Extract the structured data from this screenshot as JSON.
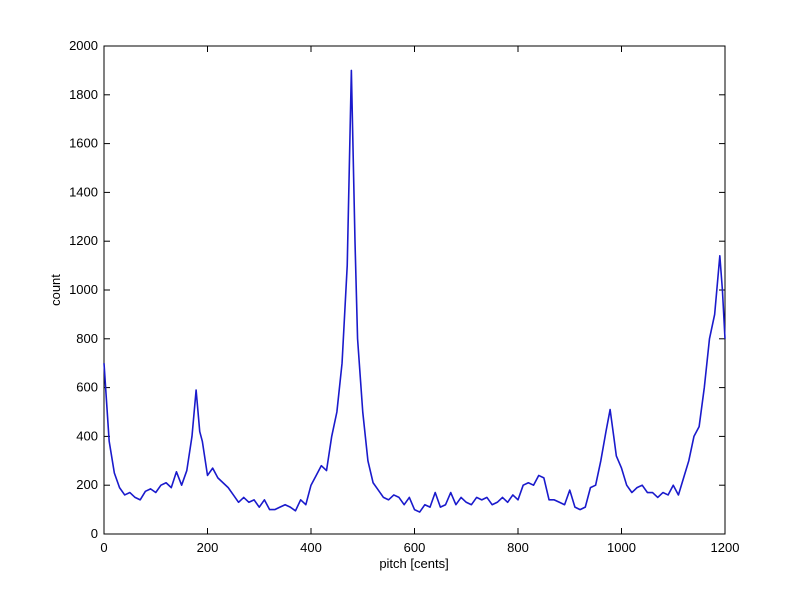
{
  "chart_data": {
    "type": "line",
    "xlabel": "pitch [cents]",
    "ylabel": "count",
    "xlim": [
      0,
      1200
    ],
    "ylim": [
      0,
      2000
    ],
    "xticks": [
      0,
      200,
      400,
      600,
      800,
      1000,
      1200
    ],
    "yticks": [
      0,
      200,
      400,
      600,
      800,
      1000,
      1200,
      1400,
      1600,
      1800,
      2000
    ],
    "grid": false,
    "x": [
      0,
      10,
      20,
      30,
      40,
      50,
      60,
      70,
      80,
      90,
      100,
      110,
      120,
      130,
      140,
      150,
      160,
      170,
      178,
      185,
      190,
      200,
      210,
      220,
      230,
      240,
      250,
      260,
      270,
      280,
      290,
      300,
      310,
      320,
      330,
      340,
      350,
      360,
      370,
      380,
      390,
      400,
      410,
      420,
      430,
      440,
      450,
      460,
      470,
      478,
      485,
      490,
      500,
      510,
      520,
      530,
      540,
      550,
      560,
      570,
      580,
      590,
      600,
      610,
      620,
      630,
      640,
      650,
      660,
      670,
      680,
      690,
      700,
      710,
      720,
      730,
      740,
      750,
      760,
      770,
      780,
      790,
      800,
      810,
      820,
      830,
      840,
      850,
      860,
      870,
      880,
      890,
      900,
      910,
      920,
      930,
      940,
      950,
      960,
      970,
      978,
      985,
      990,
      1000,
      1010,
      1020,
      1030,
      1040,
      1050,
      1060,
      1070,
      1080,
      1090,
      1100,
      1110,
      1120,
      1130,
      1140,
      1150,
      1160,
      1170,
      1180,
      1190,
      1195,
      1200
    ],
    "series": [
      {
        "name": "count",
        "color": "#1a1acc",
        "values": [
          700,
          380,
          250,
          190,
          160,
          170,
          150,
          140,
          175,
          185,
          170,
          200,
          210,
          190,
          255,
          200,
          260,
          400,
          590,
          420,
          380,
          240,
          270,
          230,
          210,
          190,
          160,
          130,
          150,
          130,
          140,
          110,
          140,
          100,
          100,
          110,
          120,
          110,
          95,
          140,
          120,
          200,
          240,
          280,
          260,
          400,
          500,
          700,
          1100,
          1900,
          1200,
          800,
          500,
          300,
          210,
          180,
          150,
          140,
          160,
          150,
          120,
          150,
          100,
          90,
          120,
          110,
          170,
          110,
          120,
          170,
          120,
          150,
          130,
          120,
          150,
          140,
          150,
          120,
          130,
          150,
          130,
          160,
          140,
          200,
          210,
          200,
          240,
          230,
          140,
          140,
          130,
          120,
          180,
          110,
          100,
          110,
          190,
          200,
          300,
          420,
          510,
          400,
          320,
          270,
          200,
          170,
          190,
          200,
          170,
          170,
          150,
          170,
          160,
          200,
          160,
          230,
          300,
          400,
          440,
          600,
          800,
          900,
          1140,
          1000,
          800
        ]
      }
    ]
  }
}
